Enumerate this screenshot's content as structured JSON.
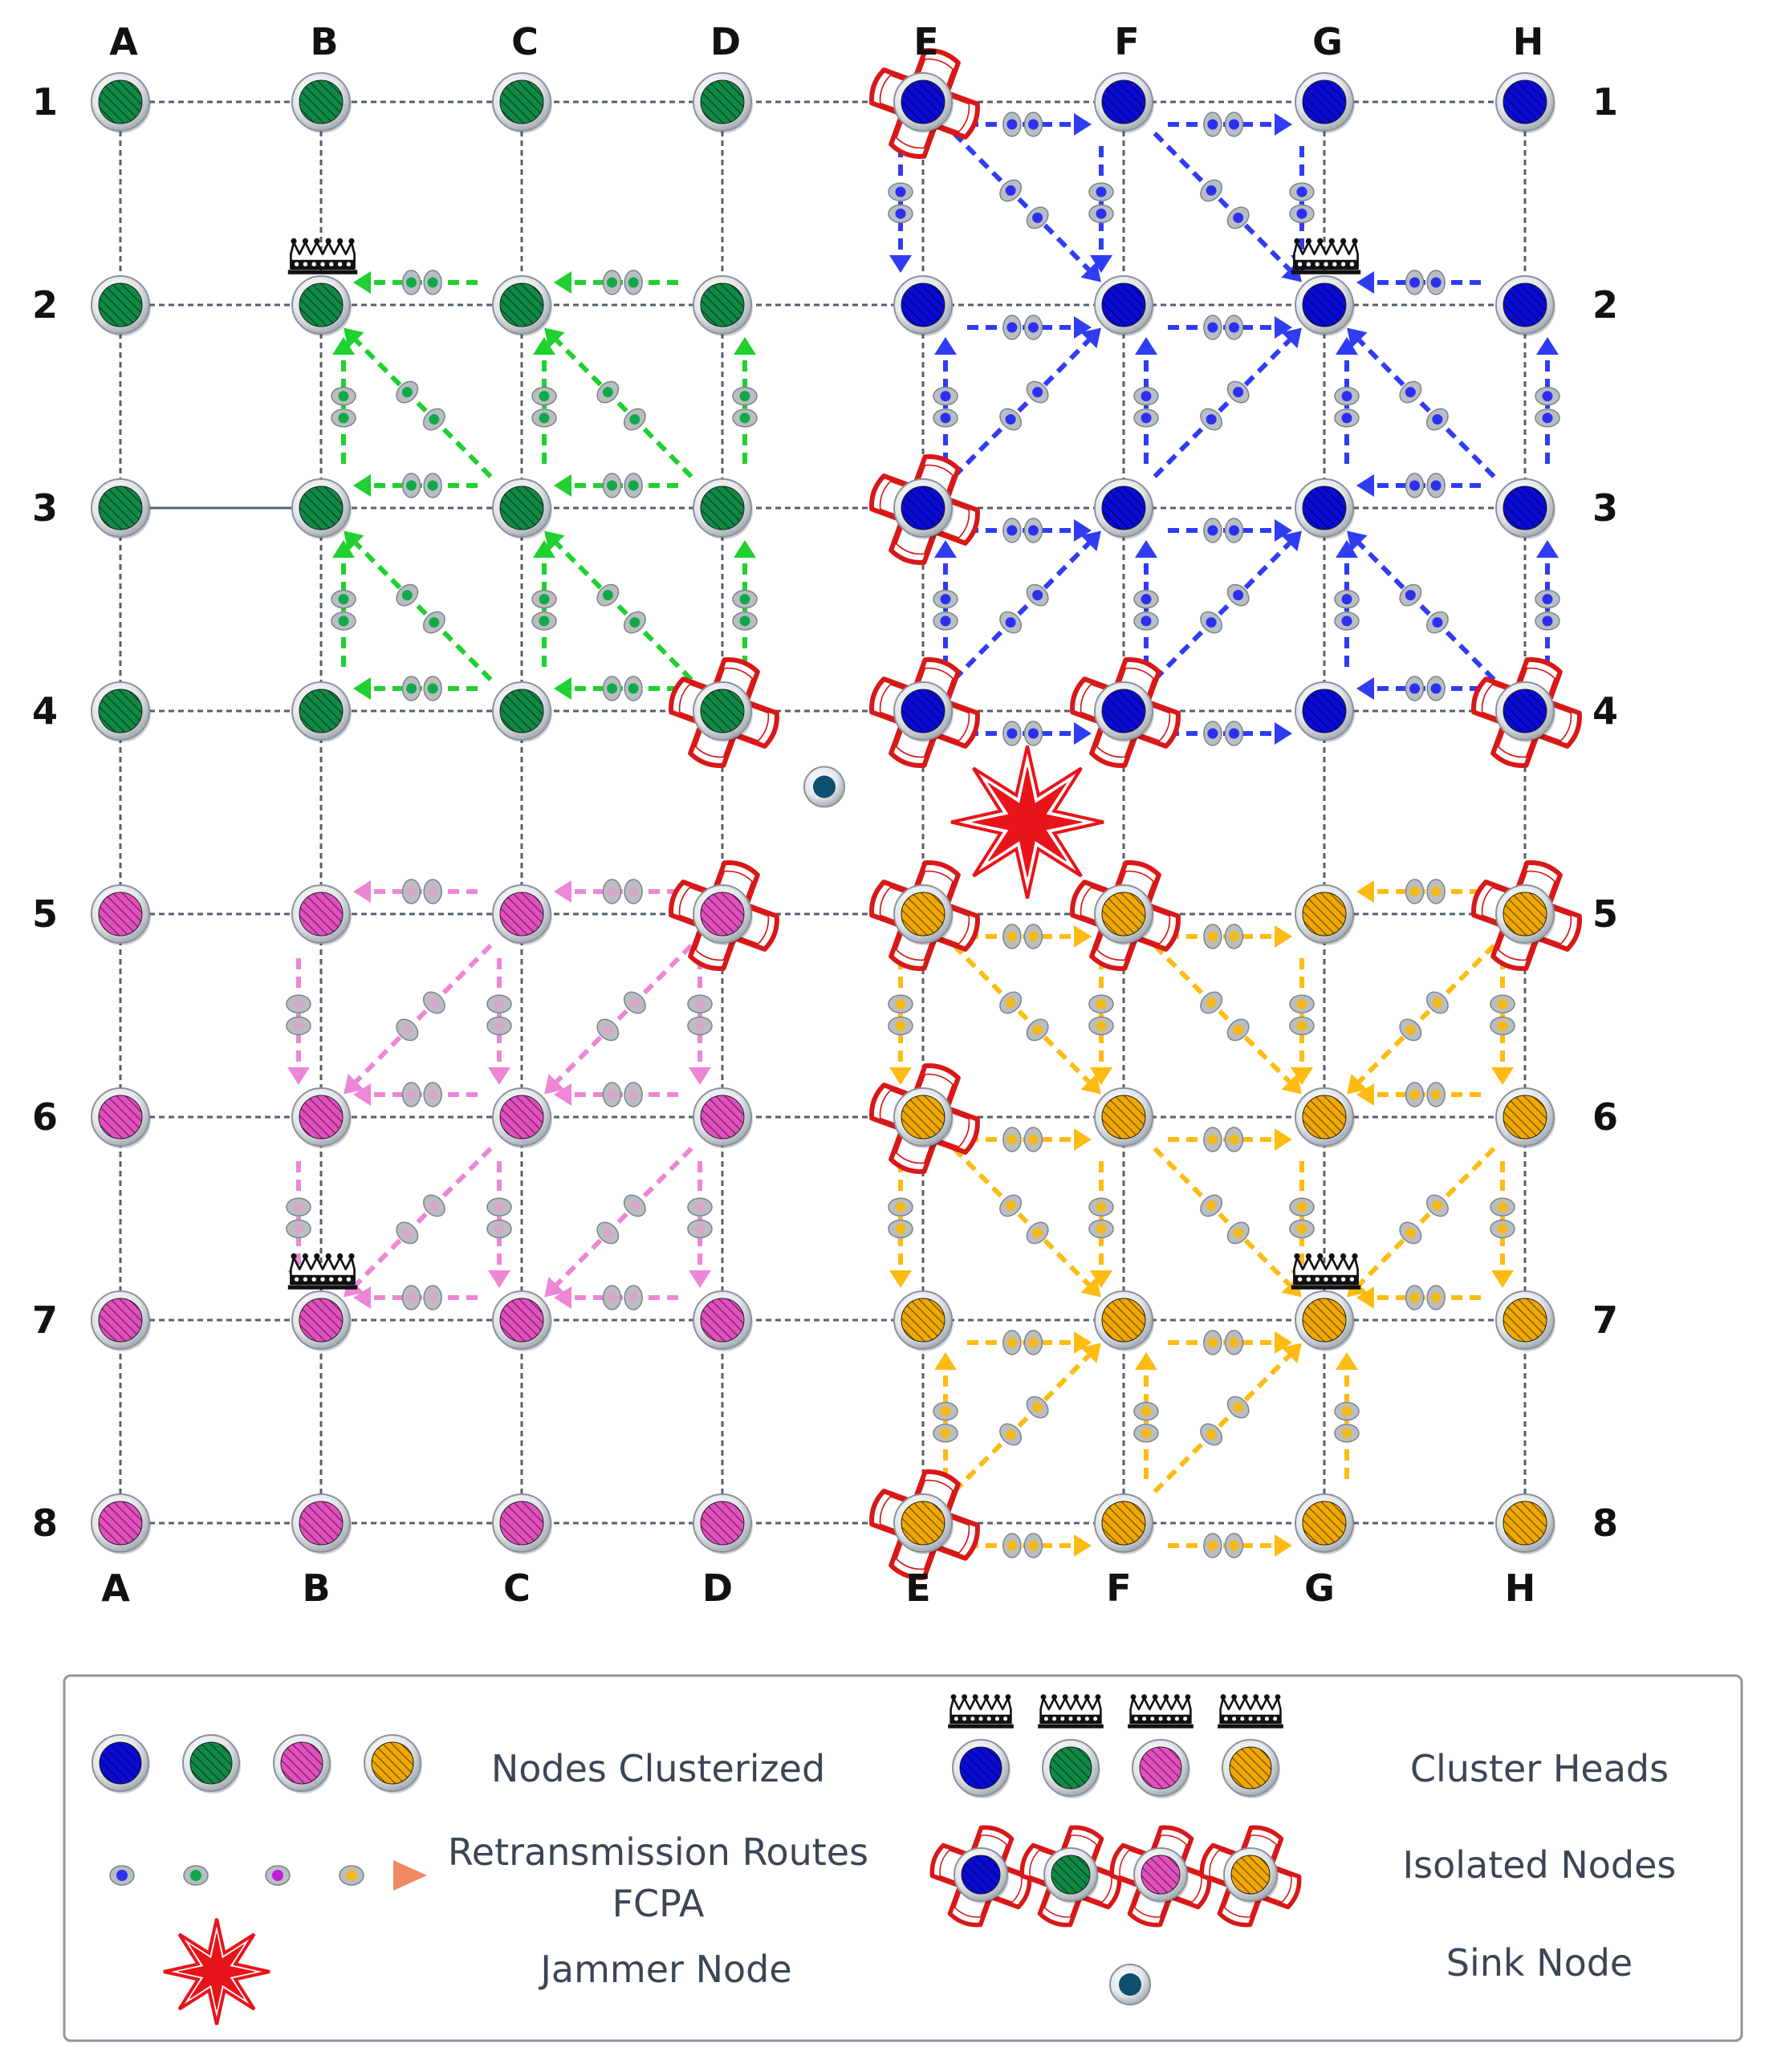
{
  "grid": {
    "columns": [
      "A",
      "B",
      "C",
      "D",
      "E",
      "F",
      "G",
      "H"
    ],
    "rows": [
      "1",
      "2",
      "3",
      "4",
      "5",
      "6",
      "7",
      "8"
    ]
  },
  "colors": {
    "blue": "#0a0ad8",
    "green": "#0f8a45",
    "pink": "#e24fbf",
    "orange": "#f0a800",
    "blue_route": "#2f3cf2",
    "green_route": "#1ed12e",
    "pink_route": "#ee86d6",
    "orange_route": "#ffbb12",
    "jammer": "#e8141a",
    "sink": "#0d4f6e",
    "isolation_ring": "#d81818"
  },
  "node_groups": [
    {
      "color": "green",
      "cells": [
        "A1",
        "B1",
        "C1",
        "D1",
        "A2",
        "B2",
        "C2",
        "D2",
        "A3",
        "B3",
        "C3",
        "D3",
        "A4",
        "B4",
        "C4",
        "D4"
      ]
    },
    {
      "color": "blue",
      "cells": [
        "E1",
        "F1",
        "G1",
        "H1",
        "E2",
        "F2",
        "G2",
        "H2",
        "E3",
        "F3",
        "G3",
        "H3",
        "E4",
        "F4",
        "G4",
        "H4"
      ]
    },
    {
      "color": "pink",
      "cells": [
        "A5",
        "B5",
        "C5",
        "D5",
        "A6",
        "B6",
        "C6",
        "D6",
        "A7",
        "B7",
        "C7",
        "D7",
        "A8",
        "B8",
        "C8",
        "D8"
      ]
    },
    {
      "color": "orange",
      "cells": [
        "E5",
        "F5",
        "G5",
        "H5",
        "E6",
        "F6",
        "G6",
        "H6",
        "E7",
        "F7",
        "G7",
        "H7",
        "E8",
        "F8",
        "G8",
        "H8"
      ]
    }
  ],
  "cluster_heads": [
    "B2",
    "G2",
    "B7",
    "G7"
  ],
  "isolated_nodes": [
    "E1",
    "E3",
    "E4",
    "F4",
    "H4",
    "D4",
    "D5",
    "E5",
    "F5",
    "H5",
    "E6",
    "E8"
  ],
  "jammer_node": {
    "between": [
      "E4",
      "F5"
    ]
  },
  "sink_node": {
    "between": [
      "D4",
      "E5"
    ]
  },
  "routes": {
    "green": [
      [
        "C2",
        "B2"
      ],
      [
        "D2",
        "C2"
      ],
      [
        "B3",
        "B2"
      ],
      [
        "C3",
        "B2"
      ],
      [
        "C3",
        "C2"
      ],
      [
        "C3",
        "B3"
      ],
      [
        "D3",
        "C2"
      ],
      [
        "D3",
        "D2"
      ],
      [
        "D3",
        "C3"
      ],
      [
        "B4",
        "B3"
      ],
      [
        "C4",
        "B3"
      ],
      [
        "C4",
        "C3"
      ],
      [
        "C4",
        "B4"
      ],
      [
        "D4",
        "C3"
      ],
      [
        "D4",
        "D3"
      ],
      [
        "D4",
        "C4"
      ]
    ],
    "blue": [
      [
        "E1",
        "F1"
      ],
      [
        "F1",
        "G1"
      ],
      [
        "E1",
        "E2"
      ],
      [
        "E1",
        "F2"
      ],
      [
        "F1",
        "F2"
      ],
      [
        "F1",
        "G2"
      ],
      [
        "G1",
        "G2"
      ],
      [
        "E2",
        "F2"
      ],
      [
        "F2",
        "G2"
      ],
      [
        "H2",
        "G2"
      ],
      [
        "E3",
        "E2"
      ],
      [
        "E3",
        "F2"
      ],
      [
        "F3",
        "F2"
      ],
      [
        "F3",
        "G2"
      ],
      [
        "E3",
        "F3"
      ],
      [
        "F3",
        "G3"
      ],
      [
        "H3",
        "G3"
      ],
      [
        "G3",
        "G2"
      ],
      [
        "H3",
        "G2"
      ],
      [
        "H3",
        "H2"
      ],
      [
        "E4",
        "E3"
      ],
      [
        "E4",
        "F3"
      ],
      [
        "F4",
        "F3"
      ],
      [
        "F4",
        "G3"
      ],
      [
        "E4",
        "F4"
      ],
      [
        "F4",
        "G4"
      ],
      [
        "G4",
        "G3"
      ],
      [
        "H4",
        "G3"
      ],
      [
        "H4",
        "H3"
      ],
      [
        "H4",
        "G4"
      ]
    ],
    "pink": [
      [
        "C5",
        "B5"
      ],
      [
        "D5",
        "C5"
      ],
      [
        "B5",
        "B6"
      ],
      [
        "C5",
        "B6"
      ],
      [
        "C5",
        "C6"
      ],
      [
        "D5",
        "C6"
      ],
      [
        "D5",
        "D6"
      ],
      [
        "C6",
        "B6"
      ],
      [
        "D6",
        "C6"
      ],
      [
        "B6",
        "B7"
      ],
      [
        "C6",
        "B7"
      ],
      [
        "C6",
        "C7"
      ],
      [
        "D6",
        "C7"
      ],
      [
        "D6",
        "D7"
      ],
      [
        "C7",
        "B7"
      ],
      [
        "D7",
        "C7"
      ]
    ],
    "orange": [
      [
        "E5",
        "F5"
      ],
      [
        "F5",
        "G5"
      ],
      [
        "H5",
        "G5"
      ],
      [
        "E5",
        "E6"
      ],
      [
        "E5",
        "F6"
      ],
      [
        "F5",
        "F6"
      ],
      [
        "F5",
        "G6"
      ],
      [
        "G5",
        "G6"
      ],
      [
        "H5",
        "G6"
      ],
      [
        "H5",
        "H6"
      ],
      [
        "E6",
        "F6"
      ],
      [
        "F6",
        "G6"
      ],
      [
        "H6",
        "G6"
      ],
      [
        "E6",
        "E7"
      ],
      [
        "E6",
        "F7"
      ],
      [
        "F6",
        "F7"
      ],
      [
        "F6",
        "G7"
      ],
      [
        "G6",
        "G7"
      ],
      [
        "H6",
        "G7"
      ],
      [
        "H6",
        "H7"
      ],
      [
        "H7",
        "G7"
      ],
      [
        "E7",
        "F7"
      ],
      [
        "F7",
        "G7"
      ],
      [
        "E8",
        "E7"
      ],
      [
        "E8",
        "F7"
      ],
      [
        "F8",
        "F7"
      ],
      [
        "F8",
        "G7"
      ],
      [
        "G8",
        "G7"
      ],
      [
        "E8",
        "F8"
      ],
      [
        "F8",
        "G8"
      ]
    ]
  },
  "legend": {
    "nodes_label": "Nodes Clusterized",
    "routes_label_line1": "Retransmission Routes",
    "routes_label_line2": "FCPA",
    "jammer_label": "Jammer Node",
    "heads_label": "Cluster Heads",
    "isolated_label": "Isolated Nodes",
    "sink_label": "Sink Node"
  }
}
